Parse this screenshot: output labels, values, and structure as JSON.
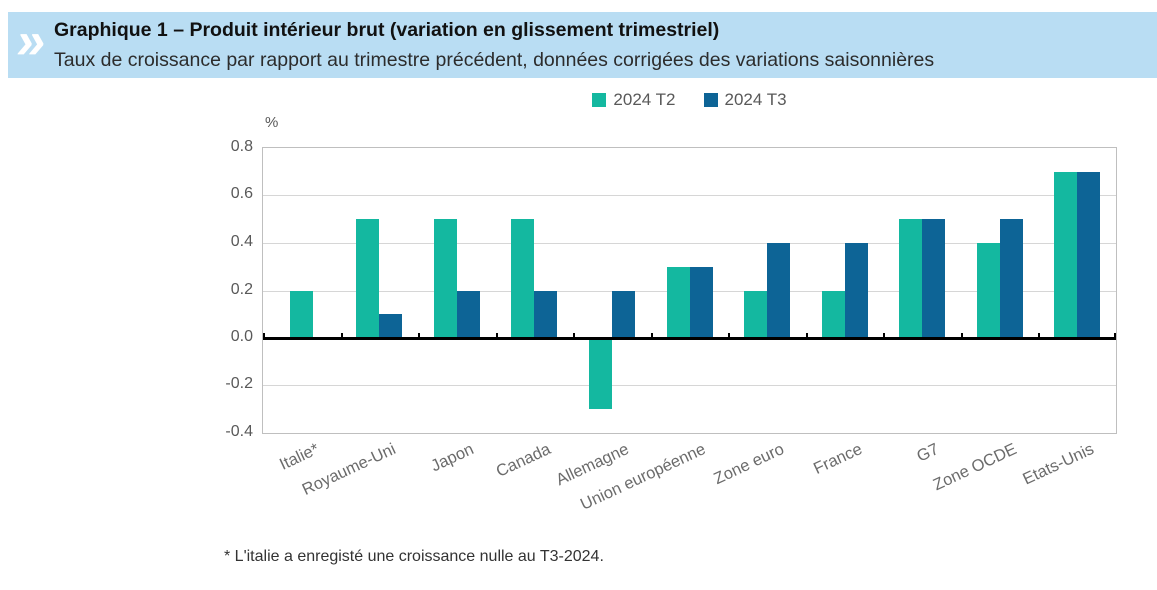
{
  "header": {
    "title": "Graphique 1 – Produit intérieur brut (variation en glissement trimestriel)",
    "subtitle": "Taux de croissance par rapport au trimestre précédent, données corrigées des variations saisonnières",
    "band_color": "#b9ddf3",
    "logo_glyph": "»"
  },
  "chart_data": {
    "type": "bar",
    "title": "Produit intérieur brut (variation en glissement trimestriel)",
    "categories": [
      "Italie*",
      "Royaume-Uni",
      "Japon",
      "Canada",
      "Allemagne",
      "Union européenne",
      "Zone euro",
      "France",
      "G7",
      "Zone OCDE",
      "Etats-Unis"
    ],
    "series": [
      {
        "name": "2024 T2",
        "color": "#14b8a0",
        "values": [
          0.2,
          0.5,
          0.5,
          0.5,
          -0.3,
          0.3,
          0.2,
          0.2,
          0.5,
          0.4,
          0.7
        ]
      },
      {
        "name": "2024 T3",
        "color": "#0d6496",
        "values": [
          0.0,
          0.1,
          0.2,
          0.2,
          0.2,
          0.3,
          0.4,
          0.4,
          0.5,
          0.5,
          0.7
        ]
      }
    ],
    "ylabel": "%",
    "ylim": [
      -0.4,
      0.8
    ],
    "ytick_step": 0.2,
    "ytick_labels": [
      "0.8",
      "0.6",
      "0.4",
      "0.2",
      "0.0",
      "-0.2",
      "-0.4"
    ],
    "grid": "horizontal",
    "legend_position": "top-center",
    "zero_line": "bold-black"
  },
  "footnote": "* L'italie a enregisté une croissance nulle au T3-2024."
}
